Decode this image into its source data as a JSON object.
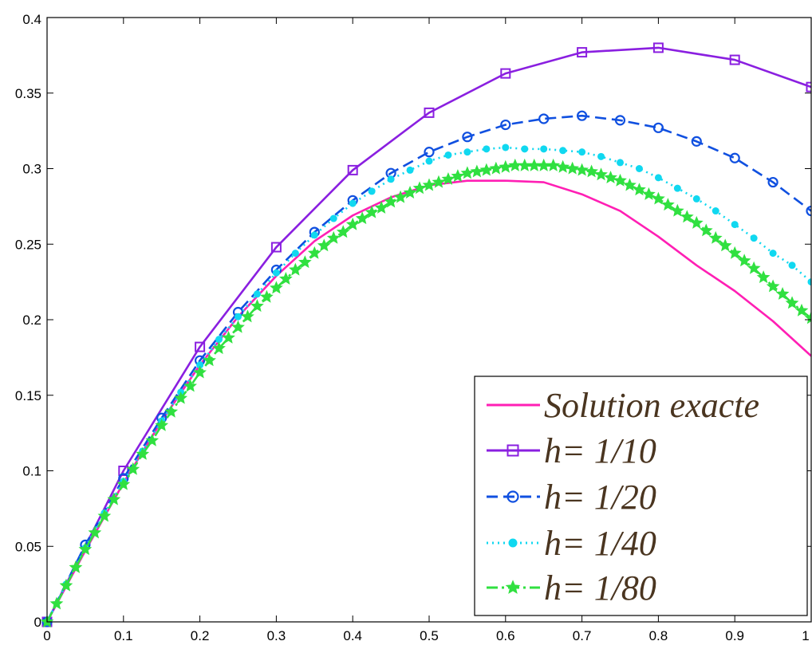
{
  "chart_data": {
    "type": "line",
    "title": "",
    "xlabel": "",
    "ylabel": "",
    "xlim": [
      0,
      1
    ],
    "ylim": [
      0,
      0.4
    ],
    "x_ticks": [
      "0",
      "0.1",
      "0.2",
      "0.3",
      "0.4",
      "0.5",
      "0.6",
      "0.7",
      "0.8",
      "0.9",
      "1"
    ],
    "y_ticks": [
      "0",
      "0.05",
      "0.1",
      "0.15",
      "0.2",
      "0.25",
      "0.3",
      "0.35",
      "0.4"
    ],
    "grid": false,
    "legend_position": "bottom-right",
    "series": [
      {
        "name": "Solution exacte",
        "color": "#ff1fb4",
        "style": "solid",
        "marker": "none",
        "x": [
          0,
          0.05,
          0.1,
          0.15,
          0.2,
          0.25,
          0.3,
          0.35,
          0.4,
          0.45,
          0.5,
          0.55,
          0.6,
          0.65,
          0.7,
          0.75,
          0.8,
          0.85,
          0.9,
          0.95,
          1
        ],
        "y": [
          0,
          0.047,
          0.092,
          0.133,
          0.17,
          0.202,
          0.229,
          0.252,
          0.269,
          0.281,
          0.289,
          0.292,
          0.292,
          0.291,
          0.283,
          0.272,
          0.255,
          0.236,
          0.219,
          0.199,
          0.176
        ]
      },
      {
        "name": "h= 1/10",
        "color": "#8a1fe0",
        "style": "solid",
        "marker": "square",
        "x": [
          0,
          0.1,
          0.2,
          0.3,
          0.4,
          0.5,
          0.6,
          0.7,
          0.8,
          0.9,
          1
        ],
        "y": [
          0,
          0.1,
          0.182,
          0.248,
          0.299,
          0.337,
          0.363,
          0.377,
          0.38,
          0.372,
          0.354
        ]
      },
      {
        "name": "h= 1/20",
        "color": "#1050e0",
        "style": "dashed",
        "marker": "circle",
        "x": [
          0,
          0.05,
          0.1,
          0.15,
          0.2,
          0.25,
          0.3,
          0.35,
          0.4,
          0.45,
          0.5,
          0.55,
          0.6,
          0.65,
          0.7,
          0.75,
          0.8,
          0.85,
          0.9,
          0.95,
          1
        ],
        "y": [
          0,
          0.051,
          0.095,
          0.135,
          0.173,
          0.205,
          0.233,
          0.258,
          0.279,
          0.297,
          0.311,
          0.321,
          0.329,
          0.333,
          0.335,
          0.332,
          0.327,
          0.318,
          0.307,
          0.291,
          0.272
        ]
      },
      {
        "name": "h= 1/40",
        "color": "#10d8f0",
        "style": "dotted",
        "marker": "dot",
        "x": [
          0,
          0.025,
          0.05,
          0.075,
          0.1,
          0.125,
          0.15,
          0.175,
          0.2,
          0.225,
          0.25,
          0.275,
          0.3,
          0.325,
          0.35,
          0.375,
          0.4,
          0.425,
          0.45,
          0.475,
          0.5,
          0.525,
          0.55,
          0.575,
          0.6,
          0.625,
          0.65,
          0.675,
          0.7,
          0.725,
          0.75,
          0.775,
          0.8,
          0.825,
          0.85,
          0.875,
          0.9,
          0.925,
          0.95,
          0.975,
          1
        ],
        "y": [
          0,
          0.025,
          0.049,
          0.072,
          0.093,
          0.113,
          0.133,
          0.152,
          0.17,
          0.187,
          0.202,
          0.217,
          0.231,
          0.244,
          0.256,
          0.267,
          0.277,
          0.285,
          0.293,
          0.299,
          0.305,
          0.309,
          0.311,
          0.313,
          0.314,
          0.313,
          0.313,
          0.312,
          0.311,
          0.308,
          0.304,
          0.3,
          0.294,
          0.287,
          0.28,
          0.272,
          0.263,
          0.254,
          0.244,
          0.236,
          0.225
        ]
      },
      {
        "name": "h= 1/80",
        "color": "#30e040",
        "style": "dashdot",
        "marker": "star",
        "x": [
          0,
          0.0125,
          0.025,
          0.0375,
          0.05,
          0.0625,
          0.075,
          0.0875,
          0.1,
          0.1125,
          0.125,
          0.1375,
          0.15,
          0.1625,
          0.175,
          0.1875,
          0.2,
          0.2125,
          0.225,
          0.2375,
          0.25,
          0.2625,
          0.275,
          0.2875,
          0.3,
          0.3125,
          0.325,
          0.3375,
          0.35,
          0.3625,
          0.375,
          0.3875,
          0.4,
          0.4125,
          0.425,
          0.4375,
          0.45,
          0.4625,
          0.475,
          0.4875,
          0.5,
          0.5125,
          0.525,
          0.5375,
          0.55,
          0.5625,
          0.575,
          0.5875,
          0.6,
          0.6125,
          0.625,
          0.6375,
          0.65,
          0.6625,
          0.675,
          0.6875,
          0.7,
          0.7125,
          0.725,
          0.7375,
          0.75,
          0.7625,
          0.775,
          0.7875,
          0.8,
          0.8125,
          0.825,
          0.8375,
          0.85,
          0.8625,
          0.875,
          0.8875,
          0.9,
          0.9125,
          0.925,
          0.9375,
          0.95,
          0.9625,
          0.975,
          0.9875,
          1
        ],
        "y": [
          0,
          0.012,
          0.024,
          0.036,
          0.048,
          0.059,
          0.07,
          0.081,
          0.091,
          0.101,
          0.111,
          0.12,
          0.13,
          0.139,
          0.148,
          0.156,
          0.165,
          0.173,
          0.181,
          0.188,
          0.195,
          0.202,
          0.209,
          0.215,
          0.221,
          0.227,
          0.233,
          0.238,
          0.244,
          0.249,
          0.254,
          0.258,
          0.263,
          0.267,
          0.271,
          0.274,
          0.278,
          0.281,
          0.284,
          0.287,
          0.289,
          0.291,
          0.293,
          0.295,
          0.297,
          0.298,
          0.299,
          0.3,
          0.301,
          0.302,
          0.302,
          0.302,
          0.302,
          0.302,
          0.301,
          0.3,
          0.299,
          0.298,
          0.296,
          0.294,
          0.292,
          0.289,
          0.286,
          0.283,
          0.28,
          0.276,
          0.272,
          0.268,
          0.264,
          0.259,
          0.254,
          0.249,
          0.244,
          0.239,
          0.234,
          0.228,
          0.222,
          0.217,
          0.211,
          0.206,
          0.201
        ]
      }
    ]
  }
}
